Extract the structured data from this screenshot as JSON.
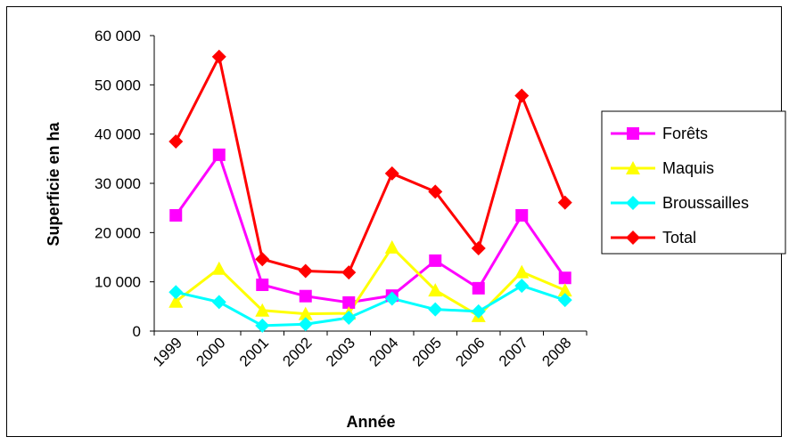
{
  "chart_data": {
    "type": "line",
    "title": "",
    "xlabel": "Année",
    "ylabel": "Superficie en ha",
    "categories": [
      "1999",
      "2000",
      "2001",
      "2002",
      "2003",
      "2004",
      "2005",
      "2006",
      "2007",
      "2008"
    ],
    "y_ticks": [
      "0",
      "10 000",
      "20 000",
      "30 000",
      "40 000",
      "50 000",
      "60 000"
    ],
    "ylim": [
      0,
      60000
    ],
    "grid": false,
    "legend_position": "right",
    "series": [
      {
        "name": "Forêts",
        "color": "#ff00ff",
        "marker": "square",
        "values": [
          23500,
          35800,
          9400,
          7100,
          5800,
          7200,
          14300,
          8700,
          23500,
          10800
        ]
      },
      {
        "name": "Maquis",
        "color": "#ffff00",
        "marker": "triangle",
        "values": [
          6000,
          12700,
          4200,
          3500,
          3600,
          17000,
          8300,
          3100,
          12000,
          8300
        ]
      },
      {
        "name": "Broussailles",
        "color": "#00ffff",
        "marker": "diamond",
        "values": [
          7900,
          5900,
          1100,
          1400,
          2700,
          6600,
          4400,
          4000,
          9200,
          6300
        ]
      },
      {
        "name": "Total",
        "color": "#ff0000",
        "marker": "diamond",
        "values": [
          38500,
          55700,
          14600,
          12200,
          11900,
          32000,
          28300,
          16800,
          47800,
          26100
        ]
      }
    ]
  }
}
